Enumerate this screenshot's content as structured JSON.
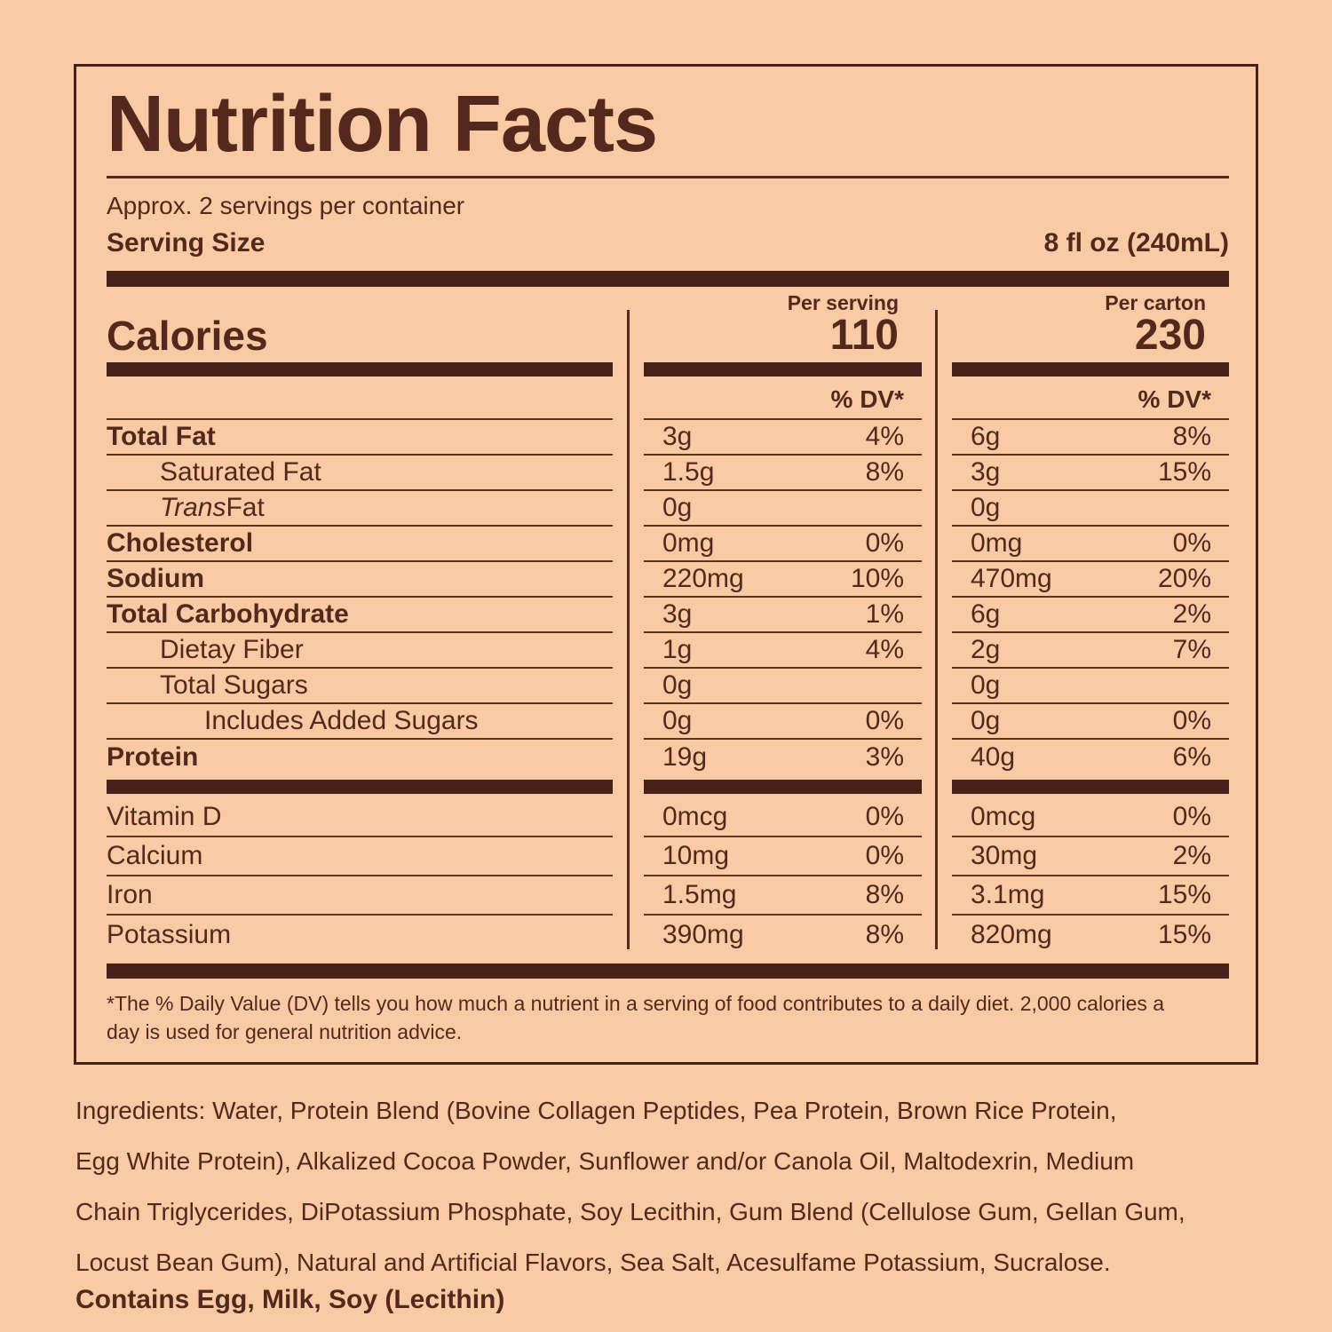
{
  "colors": {
    "background": "#FACAA4",
    "ink": "#54291D",
    "bar": "#45211A"
  },
  "label": {
    "title": "Nutrition Facts",
    "servings_per_container": "Approx. 2 servings per container",
    "serving_size": {
      "label": "Serving Size",
      "value": "8 fl oz (240mL)"
    },
    "calories_label": "Calories",
    "columns": [
      {
        "header": "Per serving",
        "calories": "110",
        "dv_header": "% DV*"
      },
      {
        "header": "Per carton",
        "calories": "230",
        "dv_header": "% DV*"
      }
    ],
    "nutrients": [
      {
        "label": "Total Fat",
        "bold": true,
        "indent": 0,
        "serving": {
          "amount": "3g",
          "dv": "4%"
        },
        "carton": {
          "amount": "6g",
          "dv": "8%"
        }
      },
      {
        "label": "Saturated Fat",
        "bold": false,
        "indent": 1,
        "serving": {
          "amount": "1.5g",
          "dv": "8%"
        },
        "carton": {
          "amount": "3g",
          "dv": "15%"
        }
      },
      {
        "label": "Trans Fat",
        "italic_prefix": "Trans",
        "bold": false,
        "indent": 1,
        "serving": {
          "amount": "0g",
          "dv": ""
        },
        "carton": {
          "amount": "0g",
          "dv": ""
        }
      },
      {
        "label": "Cholesterol",
        "bold": true,
        "indent": 0,
        "serving": {
          "amount": "0mg",
          "dv": "0%"
        },
        "carton": {
          "amount": "0mg",
          "dv": "0%"
        }
      },
      {
        "label": "Sodium",
        "bold": true,
        "indent": 0,
        "serving": {
          "amount": "220mg",
          "dv": "10%"
        },
        "carton": {
          "amount": "470mg",
          "dv": "20%"
        }
      },
      {
        "label": "Total Carbohydrate",
        "bold": true,
        "indent": 0,
        "serving": {
          "amount": "3g",
          "dv": "1%"
        },
        "carton": {
          "amount": "6g",
          "dv": "2%"
        }
      },
      {
        "label": "Dietay Fiber",
        "bold": false,
        "indent": 1,
        "serving": {
          "amount": "1g",
          "dv": "4%"
        },
        "carton": {
          "amount": "2g",
          "dv": "7%"
        }
      },
      {
        "label": "Total Sugars",
        "bold": false,
        "indent": 1,
        "serving": {
          "amount": "0g",
          "dv": ""
        },
        "carton": {
          "amount": "0g",
          "dv": ""
        }
      },
      {
        "label": "Includes Added Sugars",
        "bold": false,
        "indent": 2,
        "serving": {
          "amount": "0g",
          "dv": "0%"
        },
        "carton": {
          "amount": "0g",
          "dv": "0%"
        }
      },
      {
        "label": "Protein",
        "bold": true,
        "indent": 0,
        "serving": {
          "amount": "19g",
          "dv": "3%"
        },
        "carton": {
          "amount": "40g",
          "dv": "6%"
        }
      }
    ],
    "micronutrients": [
      {
        "label": "Vitamin D",
        "serving": {
          "amount": "0mcg",
          "dv": "0%"
        },
        "carton": {
          "amount": "0mcg",
          "dv": "0%"
        }
      },
      {
        "label": "Calcium",
        "serving": {
          "amount": "10mg",
          "dv": "0%"
        },
        "carton": {
          "amount": "30mg",
          "dv": "2%"
        }
      },
      {
        "label": "Iron",
        "serving": {
          "amount": "1.5mg",
          "dv": "8%"
        },
        "carton": {
          "amount": "3.1mg",
          "dv": "15%"
        }
      },
      {
        "label": "Potassium",
        "serving": {
          "amount": "390mg",
          "dv": "8%"
        },
        "carton": {
          "amount": "820mg",
          "dv": "15%"
        }
      }
    ],
    "footnote_lines": [
      "*The % Daily Value (DV) tells you how much a nutrient in a serving of food contributes to a daily diet. 2,000 calories a",
      "day is used for general nutrition advice."
    ]
  },
  "ingredients_lines": [
    "Ingredients: Water, Protein Blend (Bovine Collagen Peptides, Pea Protein, Brown Rice Protein,",
    "Egg White Protein), Alkalized Cocoa Powder, Sunflower and/or Canola Oil, Maltodexrin, Medium",
    "Chain Triglycerides, DiPotassium Phosphate, Soy Lecithin, Gum Blend (Cellulose Gum, Gellan Gum,",
    "Locust Bean Gum),  Natural and Artificial Flavors, Sea Salt, Acesulfame Potassium, Sucralose."
  ],
  "contains": "Contains Egg, Milk, Soy (Lecithin)"
}
